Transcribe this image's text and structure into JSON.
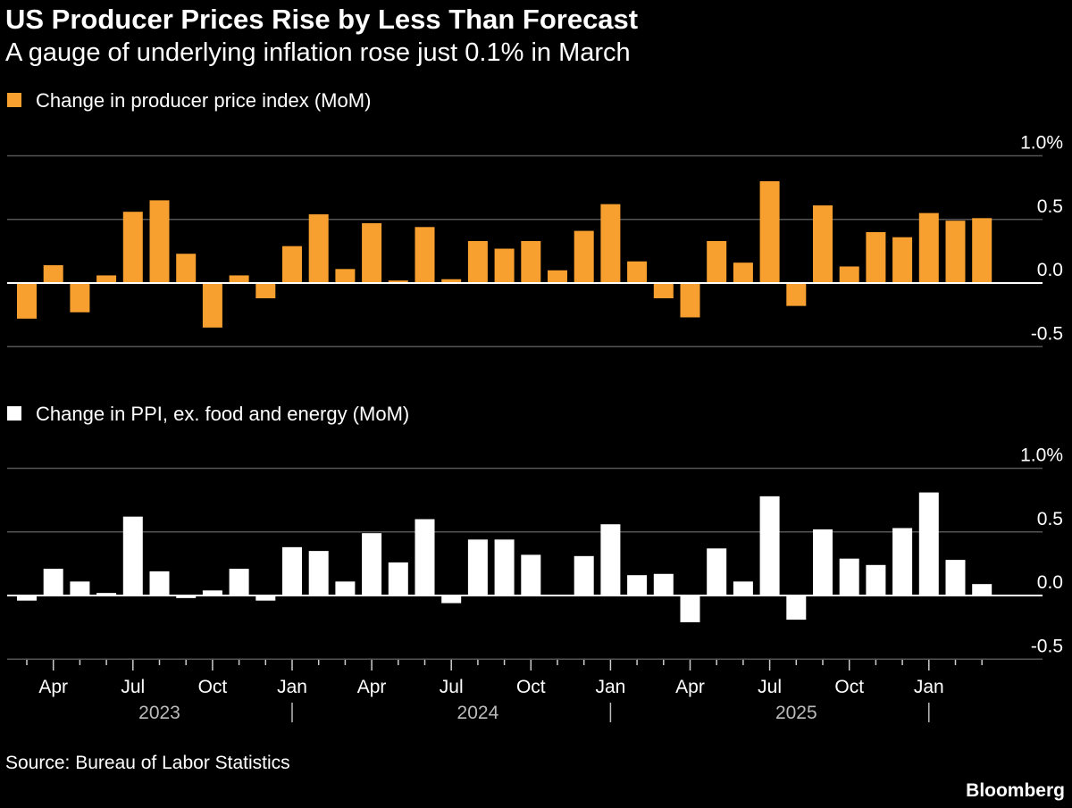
{
  "header": {
    "title": "US Producer Prices Rise by Less Than Forecast",
    "subtitle": "A gauge of underlying inflation rose just 0.1% in March"
  },
  "footer": {
    "source": "Source: Bureau of Labor Statistics",
    "brand": "Bloomberg"
  },
  "colors": {
    "background": "#000000",
    "ppi": "#F7A030",
    "core": "#FFFFFF",
    "grid": "#555555"
  },
  "chart_data": [
    {
      "type": "bar",
      "legend": "Change in producer price index (MoM)",
      "legend_placement": "top-left",
      "series": [
        {
          "name": "Change in producer price index (MoM)",
          "color": "#F7A030",
          "values": [
            -0.28,
            0.14,
            -0.23,
            0.06,
            0.56,
            0.65,
            0.23,
            -0.35,
            0.06,
            -0.12,
            0.29,
            0.54,
            0.11,
            0.47,
            0.02,
            0.44,
            0.03,
            0.33,
            0.27,
            0.33,
            0.1,
            0.41,
            0.62,
            0.17,
            -0.12,
            -0.27,
            0.33,
            0.16,
            0.8,
            -0.18,
            0.61,
            0.13,
            0.4,
            0.36,
            0.55,
            0.49,
            0.51
          ]
        }
      ],
      "ylim": [
        -0.5,
        1.0
      ],
      "y_ticks": [
        "1.0%",
        "0.5",
        "0.0",
        "-0.5"
      ],
      "y_tick_values": [
        1.0,
        0.5,
        0.0,
        -0.5
      ],
      "grid": true,
      "y_axis_side": "right"
    },
    {
      "type": "bar",
      "legend": "Change in PPI, ex. food and energy (MoM)",
      "legend_placement": "top-left",
      "series": [
        {
          "name": "Change in PPI, ex. food and energy (MoM)",
          "color": "#FFFFFF",
          "values": [
            -0.04,
            0.21,
            0.11,
            0.02,
            0.62,
            0.19,
            -0.02,
            0.04,
            0.21,
            -0.04,
            0.38,
            0.35,
            0.11,
            0.49,
            0.26,
            0.6,
            -0.06,
            0.44,
            0.44,
            0.32,
            0.0,
            0.31,
            0.56,
            0.16,
            0.17,
            -0.21,
            0.37,
            0.11,
            0.78,
            -0.19,
            0.52,
            0.29,
            0.24,
            0.53,
            0.81,
            0.28,
            0.09
          ]
        }
      ],
      "ylim": [
        -0.5,
        1.0
      ],
      "y_ticks": [
        "1.0%",
        "0.5",
        "0.0",
        "-0.5"
      ],
      "y_tick_values": [
        1.0,
        0.5,
        0.0,
        -0.5
      ],
      "grid": true,
      "y_axis_side": "right",
      "x_ticks": [
        {
          "label": "Apr",
          "index": 1
        },
        {
          "label": "Jul",
          "index": 4
        },
        {
          "label": "Oct",
          "index": 7
        },
        {
          "label": "Jan",
          "index": 10
        },
        {
          "label": "Apr",
          "index": 13
        },
        {
          "label": "Jul",
          "index": 16
        },
        {
          "label": "Oct",
          "index": 19
        },
        {
          "label": "Jan",
          "index": 22
        },
        {
          "label": "Apr",
          "index": 25
        },
        {
          "label": "Jul",
          "index": 28
        },
        {
          "label": "Oct",
          "index": 31
        },
        {
          "label": "Jan",
          "index": 34
        }
      ],
      "year_labels": [
        {
          "label": "2023",
          "index": 5
        },
        {
          "label": "2024",
          "index": 17
        },
        {
          "label": "2025",
          "index": 29
        }
      ],
      "year_separators": [
        10,
        22,
        34
      ]
    }
  ]
}
